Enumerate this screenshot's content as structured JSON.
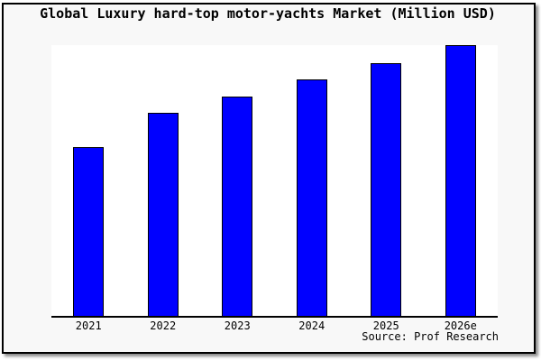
{
  "figure": {
    "background": "#f8f8f8",
    "plot_background": "#ffffff",
    "frame_border_color": "#000000"
  },
  "chart_data": {
    "type": "bar",
    "title": "Global Luxury hard-top motor-yachts Market (Million USD)",
    "categories": [
      "2021",
      "2022",
      "2023",
      "2024",
      "2025",
      "2026e"
    ],
    "values": [
      62.5,
      75,
      81,
      87.5,
      93.5,
      100
    ],
    "ylim": [
      0,
      100
    ],
    "xlabel": "",
    "ylabel": "",
    "grid": false,
    "legend": false,
    "y_axis_shown": false,
    "values_note": "No y-axis scale is printed on the chart; values are relative bar heights indexed to 2026e = 100.",
    "bar_color": "#0000ff",
    "bar_border_color": "#000000",
    "source_label": "Source: Prof Research"
  }
}
